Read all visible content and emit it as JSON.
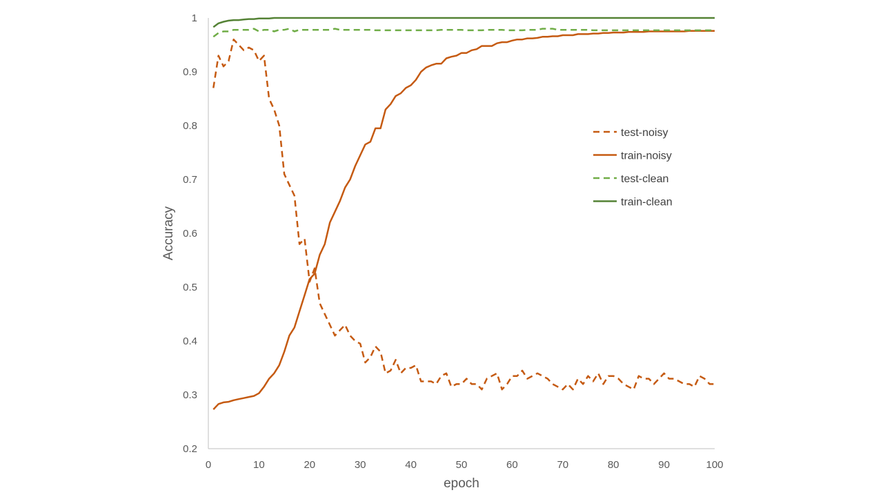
{
  "chart_data": {
    "type": "line",
    "title": "",
    "xlabel": "epoch",
    "ylabel": "Accuracy",
    "xlim": [
      0,
      100
    ],
    "ylim": [
      0.2,
      1.0
    ],
    "x_ticks": [
      0,
      10,
      20,
      30,
      40,
      50,
      60,
      70,
      80,
      90,
      100
    ],
    "x_tick_labels": [
      "0",
      "10",
      "20",
      "30",
      "40",
      "50",
      "60",
      "70",
      "80",
      "90",
      "100"
    ],
    "y_ticks": [
      0.2,
      0.3,
      0.4,
      0.5,
      0.6,
      0.7,
      0.8,
      0.9,
      1.0
    ],
    "y_tick_labels": [
      "0.2",
      "0.3",
      "0.4",
      "0.5",
      "0.6",
      "0.7",
      "0.8",
      "0.9",
      "1"
    ],
    "grid": false,
    "legend_position": "right-center",
    "x": [
      1,
      2,
      3,
      4,
      5,
      6,
      7,
      8,
      9,
      10,
      11,
      12,
      13,
      14,
      15,
      16,
      17,
      18,
      19,
      20,
      21,
      22,
      23,
      24,
      25,
      26,
      27,
      28,
      29,
      30,
      31,
      32,
      33,
      34,
      35,
      36,
      37,
      38,
      39,
      40,
      41,
      42,
      43,
      44,
      45,
      46,
      47,
      48,
      49,
      50,
      51,
      52,
      53,
      54,
      55,
      56,
      57,
      58,
      59,
      60,
      61,
      62,
      63,
      64,
      65,
      66,
      67,
      68,
      69,
      70,
      71,
      72,
      73,
      74,
      75,
      76,
      77,
      78,
      79,
      80,
      81,
      82,
      83,
      84,
      85,
      86,
      87,
      88,
      89,
      90,
      91,
      92,
      93,
      94,
      95,
      96,
      97,
      98,
      99,
      100
    ],
    "series": [
      {
        "name": "test-noisy",
        "color": "#C55A11",
        "dash": true,
        "values": [
          0.87,
          0.93,
          0.91,
          0.92,
          0.96,
          0.95,
          0.94,
          0.945,
          0.94,
          0.92,
          0.93,
          0.85,
          0.83,
          0.8,
          0.71,
          0.69,
          0.67,
          0.58,
          0.59,
          0.51,
          0.535,
          0.47,
          0.45,
          0.43,
          0.41,
          0.42,
          0.43,
          0.41,
          0.4,
          0.395,
          0.36,
          0.37,
          0.39,
          0.38,
          0.34,
          0.345,
          0.365,
          0.34,
          0.35,
          0.35,
          0.355,
          0.325,
          0.325,
          0.325,
          0.32,
          0.335,
          0.34,
          0.315,
          0.32,
          0.32,
          0.33,
          0.32,
          0.32,
          0.31,
          0.33,
          0.335,
          0.34,
          0.31,
          0.32,
          0.335,
          0.335,
          0.345,
          0.33,
          0.335,
          0.34,
          0.335,
          0.33,
          0.32,
          0.315,
          0.31,
          0.32,
          0.31,
          0.33,
          0.32,
          0.335,
          0.325,
          0.34,
          0.32,
          0.335,
          0.335,
          0.33,
          0.32,
          0.315,
          0.31,
          0.335,
          0.33,
          0.33,
          0.32,
          0.33,
          0.34,
          0.33,
          0.33,
          0.325,
          0.32,
          0.32,
          0.315,
          0.335,
          0.33,
          0.32,
          0.32
        ]
      },
      {
        "name": "train-noisy",
        "color": "#C55A11",
        "dash": false,
        "values": [
          0.273,
          0.283,
          0.286,
          0.287,
          0.29,
          0.292,
          0.294,
          0.296,
          0.298,
          0.303,
          0.315,
          0.33,
          0.34,
          0.355,
          0.38,
          0.41,
          0.425,
          0.455,
          0.485,
          0.515,
          0.525,
          0.56,
          0.58,
          0.62,
          0.64,
          0.66,
          0.685,
          0.7,
          0.725,
          0.745,
          0.765,
          0.77,
          0.795,
          0.795,
          0.83,
          0.84,
          0.855,
          0.86,
          0.87,
          0.875,
          0.885,
          0.9,
          0.908,
          0.912,
          0.915,
          0.915,
          0.925,
          0.928,
          0.93,
          0.935,
          0.935,
          0.94,
          0.942,
          0.948,
          0.948,
          0.948,
          0.953,
          0.955,
          0.955,
          0.958,
          0.96,
          0.96,
          0.962,
          0.962,
          0.963,
          0.965,
          0.965,
          0.966,
          0.966,
          0.968,
          0.968,
          0.968,
          0.97,
          0.97,
          0.97,
          0.971,
          0.971,
          0.972,
          0.972,
          0.973,
          0.973,
          0.973,
          0.974,
          0.974,
          0.974,
          0.974,
          0.975,
          0.975,
          0.975,
          0.975,
          0.975,
          0.975,
          0.975,
          0.975,
          0.976,
          0.976,
          0.976,
          0.976,
          0.976,
          0.976
        ]
      },
      {
        "name": "test-clean",
        "color": "#70AD47",
        "dash": true,
        "values": [
          0.965,
          0.972,
          0.975,
          0.975,
          0.978,
          0.978,
          0.978,
          0.978,
          0.98,
          0.975,
          0.978,
          0.978,
          0.975,
          0.978,
          0.978,
          0.98,
          0.975,
          0.978,
          0.978,
          0.978,
          0.978,
          0.978,
          0.978,
          0.978,
          0.98,
          0.978,
          0.978,
          0.978,
          0.978,
          0.978,
          0.978,
          0.978,
          0.977,
          0.977,
          0.977,
          0.977,
          0.977,
          0.977,
          0.977,
          0.977,
          0.977,
          0.977,
          0.977,
          0.977,
          0.977,
          0.978,
          0.978,
          0.978,
          0.978,
          0.978,
          0.977,
          0.977,
          0.977,
          0.977,
          0.978,
          0.978,
          0.978,
          0.978,
          0.977,
          0.977,
          0.977,
          0.977,
          0.978,
          0.978,
          0.978,
          0.98,
          0.98,
          0.98,
          0.978,
          0.978,
          0.978,
          0.978,
          0.978,
          0.978,
          0.978,
          0.977,
          0.977,
          0.977,
          0.977,
          0.977,
          0.977,
          0.977,
          0.977,
          0.977,
          0.977,
          0.977,
          0.977,
          0.977,
          0.977,
          0.977,
          0.977,
          0.977,
          0.977,
          0.977,
          0.977,
          0.977,
          0.977,
          0.977,
          0.977,
          0.977
        ]
      },
      {
        "name": "train-clean",
        "color": "#548235",
        "dash": false,
        "values": [
          0.983,
          0.99,
          0.993,
          0.995,
          0.996,
          0.996,
          0.997,
          0.998,
          0.998,
          0.999,
          0.999,
          0.999,
          1.0,
          1.0,
          1.0,
          1.0,
          1.0,
          1.0,
          1.0,
          1.0,
          1.0,
          1.0,
          1.0,
          1.0,
          1.0,
          1.0,
          1.0,
          1.0,
          1.0,
          1.0,
          1.0,
          1.0,
          1.0,
          1.0,
          1.0,
          1.0,
          1.0,
          1.0,
          1.0,
          1.0,
          1.0,
          1.0,
          1.0,
          1.0,
          1.0,
          1.0,
          1.0,
          1.0,
          1.0,
          1.0,
          1.0,
          1.0,
          1.0,
          1.0,
          1.0,
          1.0,
          1.0,
          1.0,
          1.0,
          1.0,
          1.0,
          1.0,
          1.0,
          1.0,
          1.0,
          1.0,
          1.0,
          1.0,
          1.0,
          1.0,
          1.0,
          1.0,
          1.0,
          1.0,
          1.0,
          1.0,
          1.0,
          1.0,
          1.0,
          1.0,
          1.0,
          1.0,
          1.0,
          1.0,
          1.0,
          1.0,
          1.0,
          1.0,
          1.0,
          1.0,
          1.0,
          1.0,
          1.0,
          1.0,
          1.0,
          1.0,
          1.0,
          1.0,
          1.0,
          1.0
        ]
      }
    ]
  }
}
